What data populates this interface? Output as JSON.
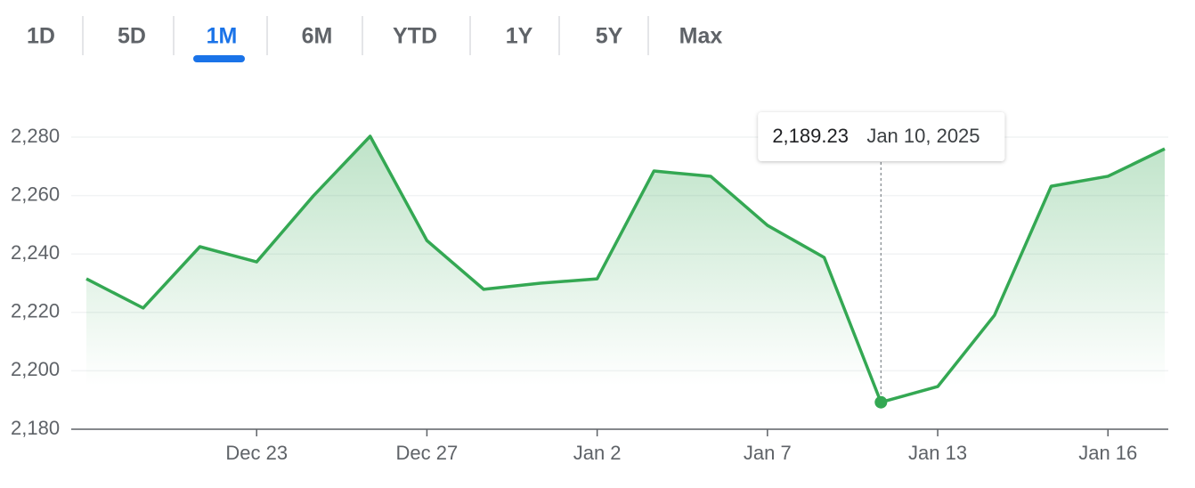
{
  "tabs": [
    "1D",
    "5D",
    "1M",
    "6M",
    "YTD",
    "1Y",
    "5Y",
    "Max"
  ],
  "selected_tab": "1M",
  "chart_data": {
    "type": "line",
    "categories": [
      null,
      null,
      null,
      "Dec 23",
      null,
      null,
      "Dec 27",
      null,
      null,
      "Jan 2",
      null,
      null,
      "Jan 7",
      null,
      null,
      "Jan 13",
      null,
      null,
      "Jan 16",
      null
    ],
    "series": [
      {
        "color": "#34a853",
        "values": [
          2231.5,
          2221.5,
          2242.5,
          2237.3,
          2259.9,
          2280.3,
          2244.6,
          2227.9,
          2230.0,
          2231.5,
          2268.4,
          2266.6,
          2249.8,
          2238.8,
          2189.23,
          2194.6,
          2219.0,
          2263.2,
          2266.6,
          2276.0
        ]
      }
    ],
    "ylim": [
      2180,
      2280
    ],
    "yticks": [
      {
        "value": 2180,
        "label": "2,180"
      },
      {
        "value": 2200,
        "label": "2,200"
      },
      {
        "value": 2220,
        "label": "2,220"
      },
      {
        "value": 2240,
        "label": "2,240"
      },
      {
        "value": 2260,
        "label": "2,260"
      },
      {
        "value": 2280,
        "label": "2,280"
      }
    ],
    "grid": true,
    "tooltip": {
      "value": 2189.23,
      "label": "2,189.23",
      "date": "Jan 10, 2025"
    }
  }
}
